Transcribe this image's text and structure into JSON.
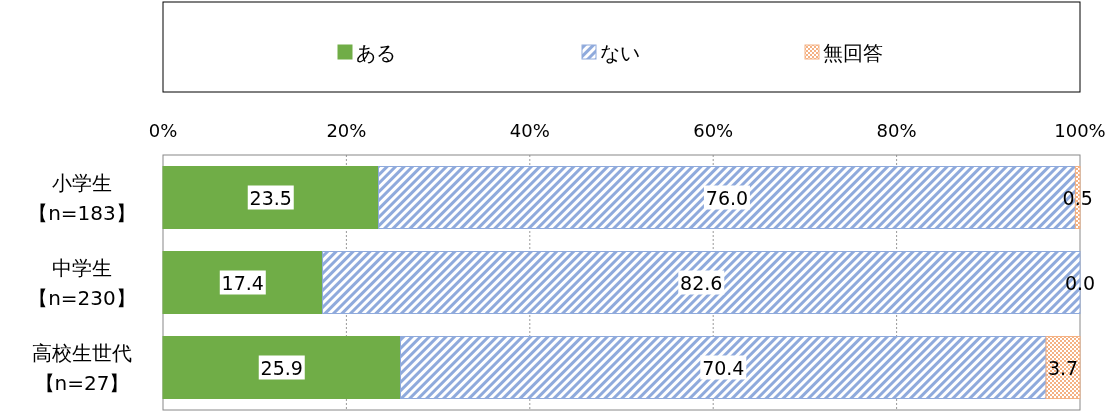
{
  "chart_data": {
    "type": "bar",
    "orientation": "horizontal",
    "stacked": true,
    "categories": [
      "小学生【n=183】",
      "中学生【n=230】",
      "高校生世代【n=27】"
    ],
    "series": [
      {
        "name": "ある",
        "color": "#70ad47",
        "values": [
          23.5,
          17.4,
          25.9
        ],
        "value_labels": [
          "23.5",
          "17.4",
          "25.9"
        ]
      },
      {
        "name": "ない",
        "color": "#8faadc",
        "values": [
          76.0,
          82.6,
          70.4
        ],
        "value_labels": [
          "76.0",
          "82.6",
          "70.4"
        ]
      },
      {
        "name": "無回答",
        "color": "#f4b183",
        "values": [
          0.5,
          0.0,
          3.7
        ],
        "value_labels": [
          "0.5",
          "0.0",
          "3.7"
        ]
      }
    ],
    "xlim": [
      0,
      100
    ],
    "xticks": [
      {
        "value": 0,
        "label": "0%"
      },
      {
        "value": 20,
        "label": "20%"
      },
      {
        "value": 40,
        "label": "40%"
      },
      {
        "value": 60,
        "label": "60%"
      },
      {
        "value": 80,
        "label": "80%"
      },
      {
        "value": 100,
        "label": "100%"
      }
    ],
    "grid": "x",
    "legend": "top"
  }
}
